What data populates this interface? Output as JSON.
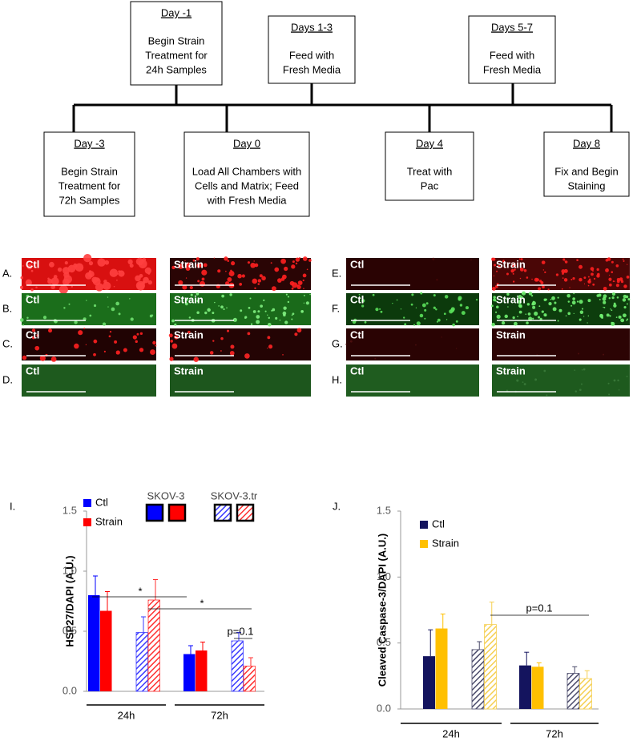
{
  "timeline": {
    "top": [
      {
        "title": "Day -1",
        "lines": [
          "Begin Strain",
          "Treatment for",
          "24h Samples"
        ]
      },
      {
        "title": "Days 1-3",
        "lines": [
          "Feed with",
          "Fresh Media"
        ]
      },
      {
        "title": "Days 5-7",
        "lines": [
          "Feed with",
          "Fresh Media"
        ]
      }
    ],
    "bottom": [
      {
        "title": "Day -3",
        "lines": [
          "Begin Strain",
          "Treatment for",
          "72h Samples"
        ]
      },
      {
        "title": "Day 0",
        "lines": [
          "Load All Chambers with",
          "Cells and Matrix; Feed",
          "with Fresh Media"
        ]
      },
      {
        "title": "Day 4",
        "lines": [
          "Treat with",
          "Pac"
        ]
      },
      {
        "title": "Day 8",
        "lines": [
          "Fix and Begin",
          "Staining"
        ]
      }
    ]
  },
  "micrographs": [
    {
      "label": "A.",
      "ctl": "Ctl",
      "strain": "Strain"
    },
    {
      "label": "B.",
      "ctl": "Ctl",
      "strain": "Strain"
    },
    {
      "label": "C.",
      "ctl": "Ctl",
      "strain": "Strain"
    },
    {
      "label": "D.",
      "ctl": "Ctl",
      "strain": "Strain"
    },
    {
      "label": "E.",
      "ctl": "Ctl",
      "strain": "Strain"
    },
    {
      "label": "F.",
      "ctl": "Ctl",
      "strain": "Strain"
    },
    {
      "label": "G.",
      "ctl": "Ctl",
      "strain": "Strain"
    },
    {
      "label": "H.",
      "ctl": "Ctl",
      "strain": "Strain"
    }
  ],
  "chart_data": [
    {
      "type": "bar",
      "panel": "I.",
      "ylabel": "HSP27/DAPI (A.U.)",
      "categories": [
        "24h",
        "72h"
      ],
      "ylim": [
        0,
        1.5
      ],
      "yticks": [
        {
          "value": 0,
          "label": "0.0"
        },
        0.5,
        {
          "value": 1,
          "label": "1.0"
        },
        1.5
      ],
      "legend": [
        "Ctl",
        "Strain"
      ],
      "cell_lines": [
        {
          "name": "SKOV-3",
          "hatched": false,
          "series": [
            {
              "color": "#0000ff",
              "values": [
                0.8,
                0.31
              ],
              "errors": [
                0.16,
                0.07
              ]
            },
            {
              "color": "#ff0000",
              "values": [
                0.67,
                0.34
              ],
              "errors": [
                0.16,
                0.07
              ]
            }
          ]
        },
        {
          "name": "SKOV-3.tr",
          "hatched": true,
          "series": [
            {
              "color": "#3a3aff",
              "values": [
                0.49,
                0.42
              ],
              "errors": [
                0.13,
                0.07
              ]
            },
            {
              "color": "#ff3030",
              "values": [
                0.76,
                0.21
              ],
              "errors": [
                0.17,
                0.07
              ]
            }
          ]
        }
      ],
      "annotations": [
        "*",
        "*",
        "p=0.1"
      ]
    },
    {
      "type": "bar",
      "panel": "J.",
      "ylabel": "Cleaved Caspase-3/DAPI (A.U.)",
      "categories": [
        "24h",
        "72h"
      ],
      "ylim": [
        0,
        1.5
      ],
      "yticks": [
        {
          "value": 0,
          "label": "0.0"
        },
        0.5,
        {
          "value": 1,
          "label": "1.0"
        },
        1.5
      ],
      "legend": [
        "Ctl",
        "Strain"
      ],
      "cell_lines": [
        {
          "hatched": false,
          "series": [
            {
              "color": "#14145e",
              "values": [
                0.4,
                0.33
              ],
              "errors": [
                0.2,
                0.1
              ]
            },
            {
              "color": "#ffc000",
              "values": [
                0.61,
                0.32
              ],
              "errors": [
                0.11,
                0.03
              ]
            }
          ]
        },
        {
          "hatched": true,
          "series": [
            {
              "color": "#4a4a6a",
              "values": [
                0.45,
                0.27
              ],
              "errors": [
                0.06,
                0.05
              ]
            },
            {
              "color": "#f5cf50",
              "values": [
                0.64,
                0.23
              ],
              "errors": [
                0.17,
                0.06
              ]
            }
          ]
        }
      ],
      "annotations": [
        "p=0.1"
      ]
    }
  ]
}
